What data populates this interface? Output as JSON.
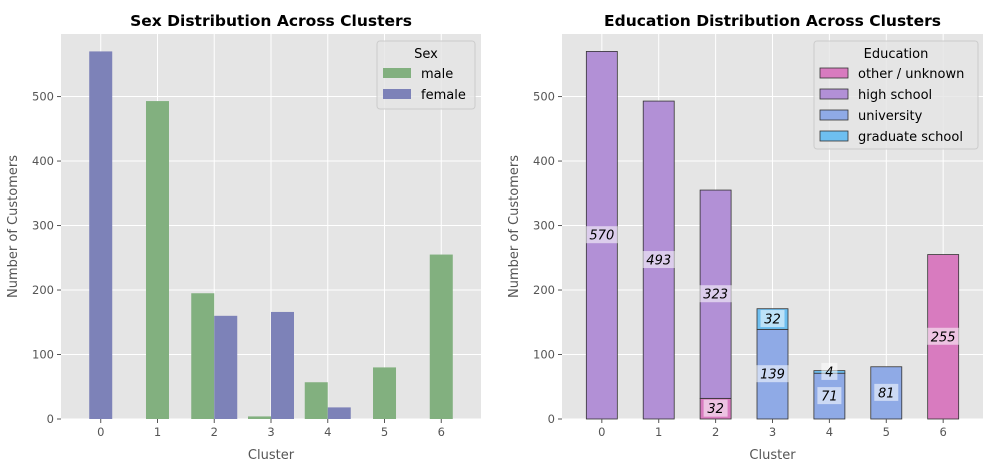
{
  "chart_data": [
    {
      "type": "bar",
      "title": "Sex Distribution Across Clusters",
      "xlabel": "Cluster",
      "ylabel": "Number of Customers",
      "categories": [
        "0",
        "1",
        "2",
        "3",
        "4",
        "5",
        "6"
      ],
      "ylim": [
        0,
        597
      ],
      "yticks": [
        0,
        100,
        200,
        300,
        400,
        500
      ],
      "grid": true,
      "legend": {
        "title": "Sex",
        "position": "top-right"
      },
      "series": [
        {
          "name": "male",
          "color": "#82b07f",
          "values": [
            0,
            493,
            195,
            4,
            57,
            80,
            255
          ]
        },
        {
          "name": "female",
          "color": "#7d82b8",
          "values": [
            570,
            0,
            160,
            166,
            18,
            0,
            0
          ]
        }
      ]
    },
    {
      "type": "bar",
      "stacked": true,
      "title": "Education Distribution Across Clusters",
      "xlabel": "Cluster",
      "ylabel": "Number of Customers",
      "categories": [
        "0",
        "1",
        "2",
        "3",
        "4",
        "5",
        "6"
      ],
      "ylim": [
        0,
        597
      ],
      "yticks": [
        0,
        100,
        200,
        300,
        400,
        500
      ],
      "grid": true,
      "legend": {
        "title": "Education",
        "position": "top-right"
      },
      "series": [
        {
          "name": "other / unknown",
          "color": "#d87bbf",
          "values": [
            0,
            0,
            32,
            0,
            0,
            0,
            255
          ]
        },
        {
          "name": "high school",
          "color": "#b290d6",
          "values": [
            570,
            493,
            323,
            0,
            0,
            0,
            0
          ]
        },
        {
          "name": "university",
          "color": "#8faae6",
          "values": [
            0,
            0,
            0,
            139,
            71,
            81,
            0
          ]
        },
        {
          "name": "graduate school",
          "color": "#6ebff0",
          "values": [
            0,
            0,
            0,
            32,
            4,
            0,
            0
          ]
        }
      ]
    }
  ]
}
